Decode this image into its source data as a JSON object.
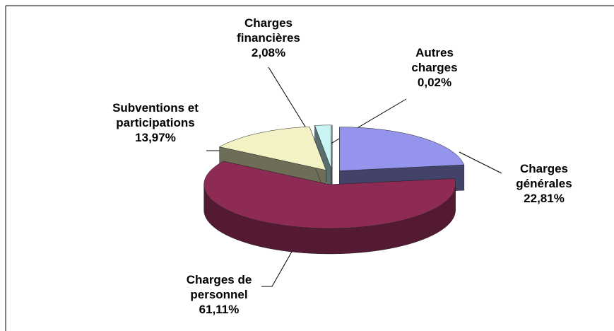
{
  "chart_data": {
    "type": "pie",
    "categories": [
      "Charges générales",
      "Charges de personnel",
      "Subventions et participations",
      "Charges financières",
      "Autres charges"
    ],
    "values": [
      22.81,
      61.11,
      13.97,
      2.08,
      0.02
    ],
    "value_labels": [
      "22,81%",
      "61,11%",
      "13,97%",
      "2,08%",
      "0,02%"
    ],
    "colors": [
      "#9494ec",
      "#8e2b55",
      "#f2f2c4",
      "#c8f4f4",
      "#ffffff"
    ]
  }
}
